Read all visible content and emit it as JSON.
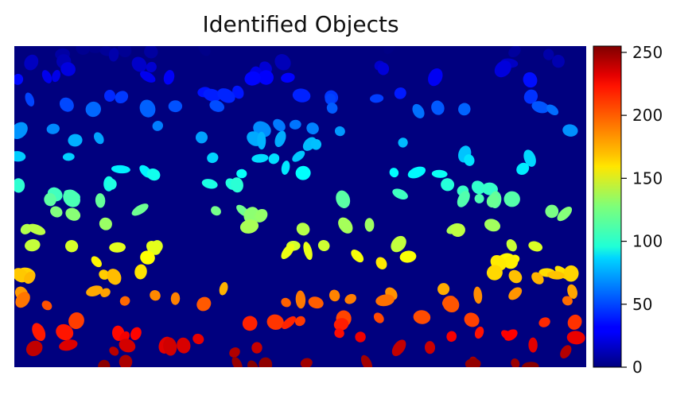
{
  "chart_data": {
    "type": "heatmap",
    "title": "Identified Objects",
    "xlabel": "",
    "ylabel": "",
    "background_value": 0,
    "colormap": "jet",
    "colorbar": {
      "range": [
        0,
        255
      ],
      "ticks": [
        0,
        50,
        100,
        150,
        200,
        250
      ]
    },
    "label_order": "object label increases from top row to bottom row",
    "axes_visible": false
  }
}
